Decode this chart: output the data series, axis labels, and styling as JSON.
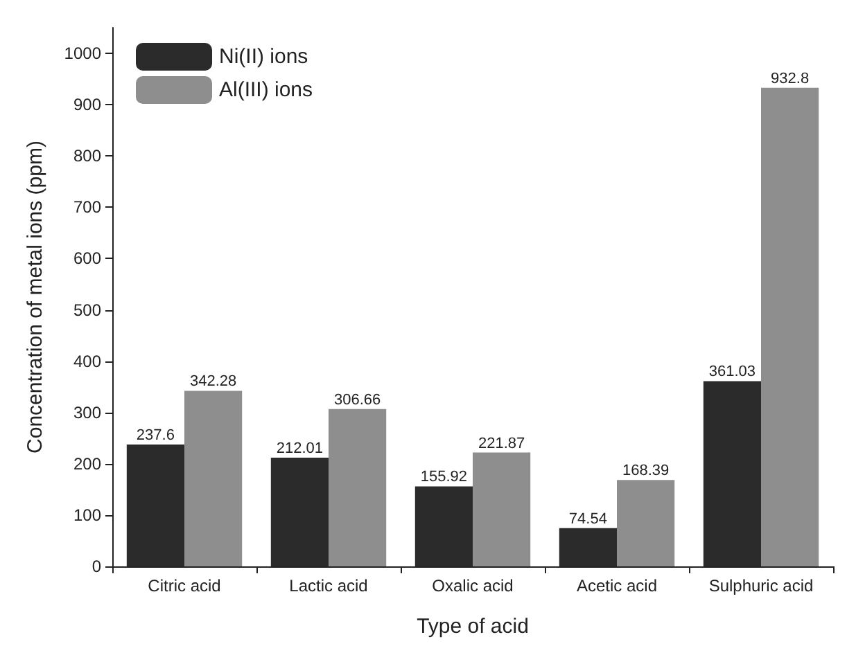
{
  "chart_data": {
    "type": "bar",
    "xlabel": "Type of acid",
    "ylabel": "Concentration of metal ions (ppm)",
    "categories": [
      "Citric acid",
      "Lactic acid",
      "Oxalic acid",
      "Acetic acid",
      "Sulphuric acid"
    ],
    "series": [
      {
        "name": "Ni(II) ions",
        "color": "#2b2b2b",
        "values": [
          237.6,
          212.01,
          155.92,
          74.54,
          361.03
        ]
      },
      {
        "name": "Al(III) ions",
        "color": "#8e8e8e",
        "values": [
          342.28,
          306.66,
          221.87,
          168.39,
          932.8
        ]
      }
    ],
    "ylim": [
      0,
      1050
    ],
    "yticks": [
      0,
      100,
      200,
      300,
      400,
      500,
      600,
      700,
      800,
      900,
      1000
    ],
    "data_labels": true,
    "legend": "top left",
    "grid": false
  }
}
